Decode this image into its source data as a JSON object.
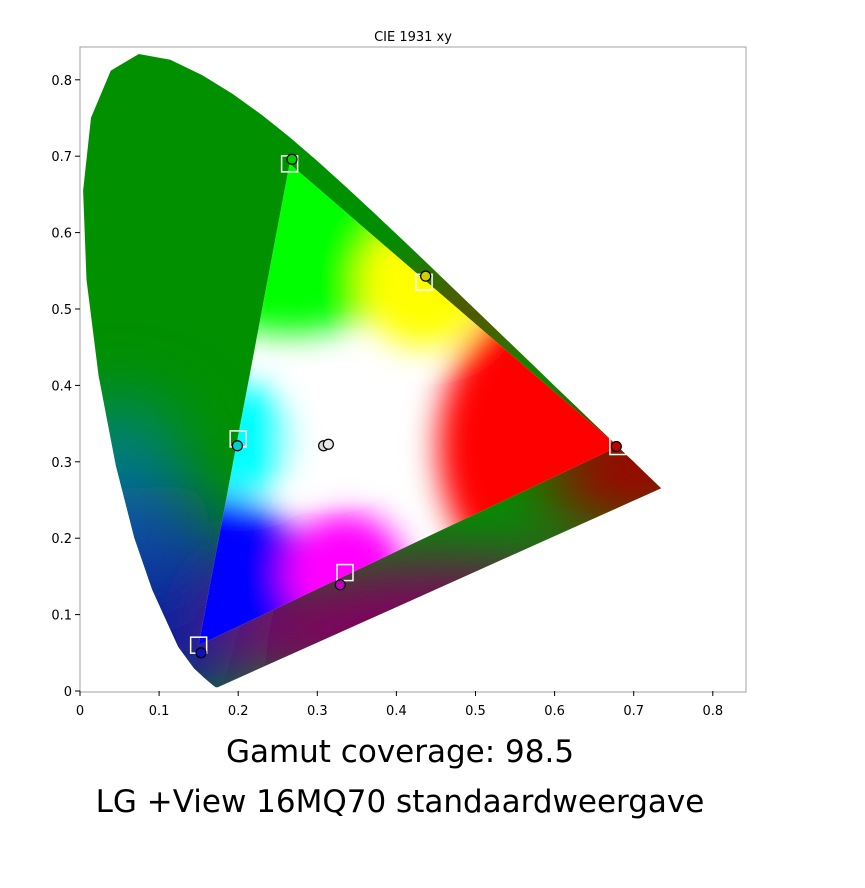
{
  "caption": {
    "coverage": "Gamut coverage: 98.5",
    "model": "LG +View 16MQ70 standaardweergave"
  },
  "chart_data": {
    "type": "scatter",
    "title": "CIE 1931 xy",
    "xlabel": "",
    "ylabel": "",
    "xlim": [
      0,
      0.84
    ],
    "ylim": [
      0,
      0.84
    ],
    "x_ticks": [
      "0",
      "0.1",
      "0.2",
      "0.3",
      "0.4",
      "0.5",
      "0.6",
      "0.7",
      "0.8"
    ],
    "y_ticks": [
      "0",
      "0.1",
      "0.2",
      "0.3",
      "0.4",
      "0.5",
      "0.6",
      "0.7",
      "0.8"
    ],
    "grid": false,
    "legend": "none",
    "spectral_locus": [
      [
        0.1741,
        0.005
      ],
      [
        0.1738,
        0.0049
      ],
      [
        0.1736,
        0.0049
      ],
      [
        0.1733,
        0.0048
      ],
      [
        0.1726,
        0.0048
      ],
      [
        0.1714,
        0.0051
      ],
      [
        0.1689,
        0.0069
      ],
      [
        0.1644,
        0.0109
      ],
      [
        0.1566,
        0.0177
      ],
      [
        0.144,
        0.0297
      ],
      [
        0.1241,
        0.0578
      ],
      [
        0.0913,
        0.1327
      ],
      [
        0.0687,
        0.2007
      ],
      [
        0.0454,
        0.295
      ],
      [
        0.0235,
        0.4127
      ],
      [
        0.0082,
        0.5384
      ],
      [
        0.0039,
        0.6548
      ],
      [
        0.0139,
        0.7502
      ],
      [
        0.0389,
        0.812
      ],
      [
        0.0743,
        0.8338
      ],
      [
        0.1142,
        0.8262
      ],
      [
        0.1547,
        0.8059
      ],
      [
        0.1929,
        0.7816
      ],
      [
        0.2296,
        0.7543
      ],
      [
        0.2658,
        0.7243
      ],
      [
        0.3016,
        0.6923
      ],
      [
        0.3373,
        0.6589
      ],
      [
        0.3731,
        0.6245
      ],
      [
        0.4087,
        0.5896
      ],
      [
        0.4441,
        0.5547
      ],
      [
        0.4788,
        0.5202
      ],
      [
        0.5125,
        0.4866
      ],
      [
        0.5448,
        0.4544
      ],
      [
        0.5752,
        0.4242
      ],
      [
        0.6029,
        0.3965
      ],
      [
        0.627,
        0.3725
      ],
      [
        0.6482,
        0.3514
      ],
      [
        0.6658,
        0.334
      ],
      [
        0.6801,
        0.3197
      ],
      [
        0.6915,
        0.3083
      ],
      [
        0.7006,
        0.2993
      ],
      [
        0.7079,
        0.292
      ],
      [
        0.714,
        0.2859
      ],
      [
        0.719,
        0.2809
      ],
      [
        0.723,
        0.277
      ],
      [
        0.726,
        0.274
      ],
      [
        0.7283,
        0.2717
      ],
      [
        0.73,
        0.27
      ],
      [
        0.7311,
        0.2689
      ],
      [
        0.732,
        0.268
      ],
      [
        0.7327,
        0.2673
      ],
      [
        0.7334,
        0.2666
      ],
      [
        0.734,
        0.266
      ],
      [
        0.7344,
        0.2656
      ],
      [
        0.7347,
        0.2653
      ]
    ],
    "target_gamut": {
      "marker": "square",
      "color": "#ffffff",
      "points": [
        {
          "name": "red",
          "x": 0.68,
          "y": 0.32
        },
        {
          "name": "green",
          "x": 0.265,
          "y": 0.69
        },
        {
          "name": "blue",
          "x": 0.15,
          "y": 0.06
        },
        {
          "name": "white",
          "x": 0.3127,
          "y": 0.329
        },
        {
          "name": "cyan",
          "x": 0.2,
          "y": 0.33
        },
        {
          "name": "magenta",
          "x": 0.335,
          "y": 0.155
        },
        {
          "name": "yellow",
          "x": 0.435,
          "y": 0.535
        }
      ]
    },
    "measured": {
      "marker": "circle",
      "edge_color": "#000000",
      "points": [
        {
          "name": "red",
          "x": 0.678,
          "y": 0.32,
          "fill": "#c00000"
        },
        {
          "name": "green",
          "x": 0.268,
          "y": 0.696,
          "fill": "#00d000"
        },
        {
          "name": "blue",
          "x": 0.153,
          "y": 0.05,
          "fill": "#1010c0"
        },
        {
          "name": "white-1",
          "x": 0.308,
          "y": 0.321,
          "fill": "#d8d8d8"
        },
        {
          "name": "white-2",
          "x": 0.314,
          "y": 0.323,
          "fill": "#e8e8e8"
        },
        {
          "name": "cyan",
          "x": 0.199,
          "y": 0.321,
          "fill": "#00d0d0"
        },
        {
          "name": "magenta",
          "x": 0.329,
          "y": 0.139,
          "fill": "#c000c0"
        },
        {
          "name": "yellow",
          "x": 0.437,
          "y": 0.543,
          "fill": "#d0d000"
        }
      ]
    },
    "colors": {
      "background": "#ffffff",
      "frame": "#a0a0a0",
      "locus_green": "#009000",
      "locus_blue": "#0a1a9a",
      "locus_red": "#a00000",
      "locus_teal": "#008080"
    }
  }
}
